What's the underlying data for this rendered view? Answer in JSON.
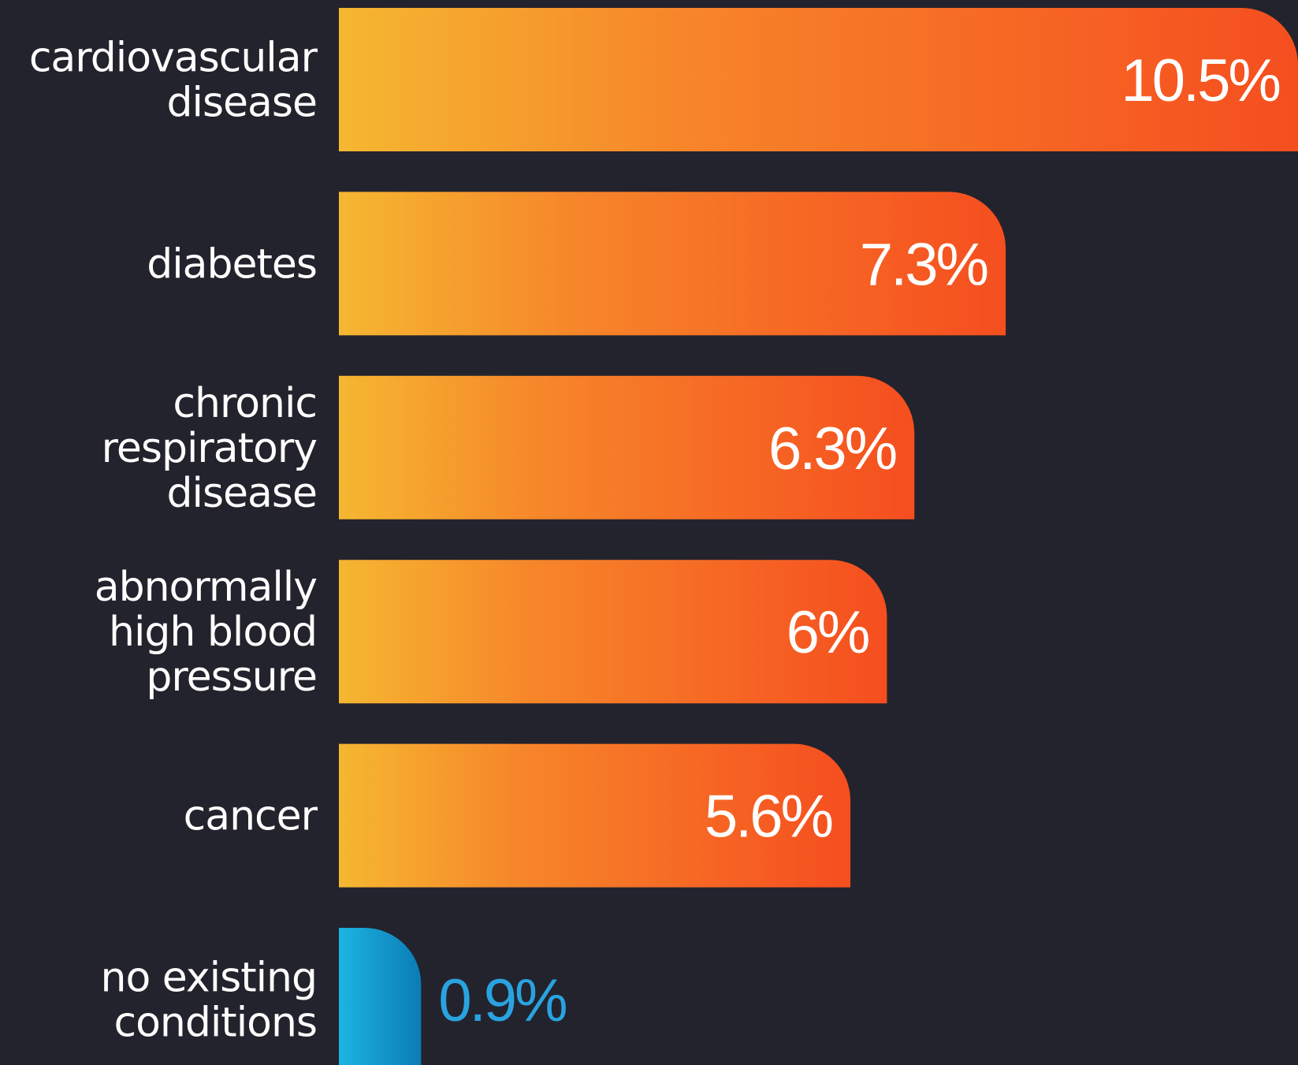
{
  "chart_data": {
    "type": "bar",
    "orientation": "horizontal",
    "categories": [
      [
        "cardiovascular",
        "disease"
      ],
      [
        "diabetes"
      ],
      [
        "chronic",
        "respiratory",
        "disease"
      ],
      [
        "abnormally",
        "high blood",
        "pressure"
      ],
      [
        "cancer"
      ],
      [
        "no existing",
        "conditions"
      ]
    ],
    "values": [
      10.5,
      7.3,
      6.3,
      6.0,
      5.6,
      0.9
    ],
    "value_labels": [
      "10.5%",
      "7.3%",
      "6.3%",
      "6%",
      "5.6%",
      "0.9%"
    ],
    "bar_styles": [
      "orange",
      "orange",
      "orange",
      "orange",
      "orange",
      "blue"
    ],
    "xlim": [
      0,
      10.5
    ],
    "title": "",
    "xlabel": "",
    "ylabel": "",
    "grid": false,
    "legend": "none"
  },
  "colors": {
    "background": "#23232d",
    "orange_start": "#f5b731",
    "orange_mid": "#f7862a",
    "orange_end": "#f54e1f",
    "blue_start": "#1db4e3",
    "blue_end": "#0b7cb5",
    "label_text": "#ffffff",
    "value_text_on_bar": "#ffffff",
    "value_text_outside": "#29a3e0"
  }
}
